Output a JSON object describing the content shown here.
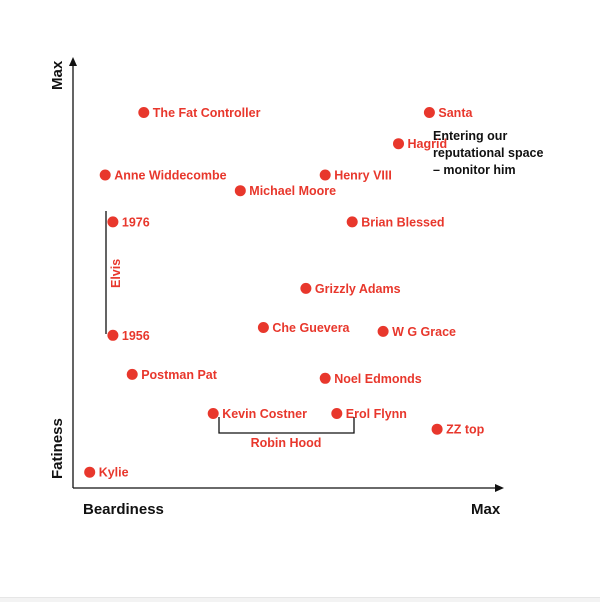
{
  "colors": {
    "accent": "#e8372c",
    "ink": "#111111",
    "background": "#ffffff"
  },
  "chart_data": {
    "type": "scatter",
    "x_axis": {
      "label": "Beardiness",
      "max_label": "Max"
    },
    "y_axis": {
      "label": "Fatiness",
      "max_label": "Max"
    },
    "xlim": [
      0,
      100
    ],
    "ylim": [
      0,
      100
    ],
    "grid": false,
    "points": [
      {
        "label": "The Fat Controller",
        "x": 16,
        "y": 94
      },
      {
        "label": "Santa",
        "x": 90,
        "y": 94
      },
      {
        "label": "Hagrid",
        "x": 82,
        "y": 86
      },
      {
        "label": "Anne Widdecombe",
        "x": 6,
        "y": 78
      },
      {
        "label": "Henry VIII",
        "x": 63,
        "y": 78
      },
      {
        "label": "Michael Moore",
        "x": 41,
        "y": 74
      },
      {
        "label": "1976",
        "x": 8,
        "y": 66
      },
      {
        "label": "Brian Blessed",
        "x": 70,
        "y": 66
      },
      {
        "label": "Grizzly Adams",
        "x": 58,
        "y": 49
      },
      {
        "label": "Che Guevera",
        "x": 47,
        "y": 39
      },
      {
        "label": "W G Grace",
        "x": 78,
        "y": 38
      },
      {
        "label": "1956",
        "x": 8,
        "y": 37
      },
      {
        "label": "Postman Pat",
        "x": 13,
        "y": 27
      },
      {
        "label": "Noel Edmonds",
        "x": 63,
        "y": 26
      },
      {
        "label": "Kevin Costner",
        "x": 34,
        "y": 17
      },
      {
        "label": "Erol Flynn",
        "x": 66,
        "y": 17
      },
      {
        "label": "ZZ top",
        "x": 92,
        "y": 13
      },
      {
        "label": "Kylie",
        "x": 2,
        "y": 2
      }
    ],
    "annotations": [
      {
        "text": "Entering our reputational space – monitor him",
        "lines": [
          "Entering our",
          "reputational space",
          "– monitor him"
        ],
        "target": "Hagrid"
      }
    ],
    "groups": [
      {
        "label": "Elvis",
        "members": [
          "1976",
          "1956"
        ],
        "style": "vertical-line"
      },
      {
        "label": "Robin Hood",
        "members": [
          "Kevin Costner",
          "Erol Flynn"
        ],
        "style": "bracket"
      }
    ]
  }
}
